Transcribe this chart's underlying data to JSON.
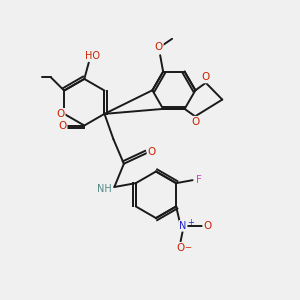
{
  "background_color": "#f0f0f0",
  "bond_color": "#1a1a1a",
  "figsize": [
    3.0,
    3.0
  ],
  "dpi": 100,
  "atom_colors": {
    "O": "#cc2200",
    "N": "#2222cc",
    "F": "#cc44cc",
    "H": "#558888",
    "C": "#1a1a1a"
  }
}
